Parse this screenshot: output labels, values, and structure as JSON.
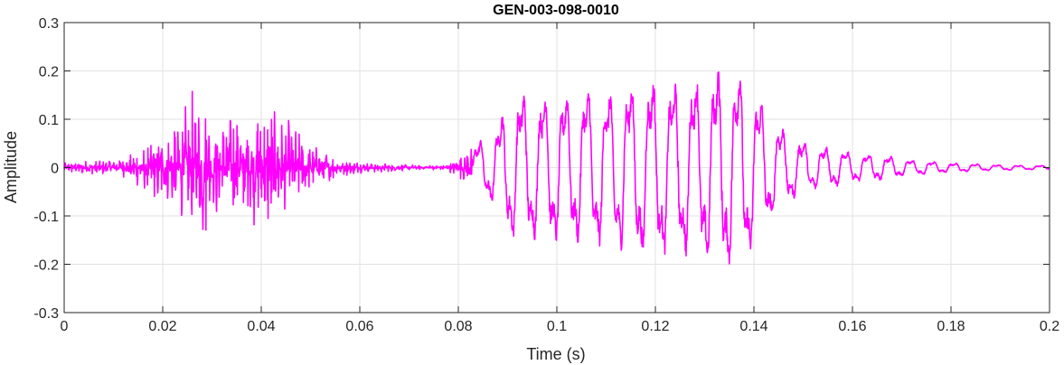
{
  "chart_data": {
    "type": "line",
    "title": "GEN-003-098-0010",
    "xlabel": "Time (s)",
    "ylabel": "Amplitude",
    "xlim": [
      0,
      0.2
    ],
    "ylim": [
      -0.3,
      0.3
    ],
    "x_ticks": [
      0,
      0.02,
      0.04,
      0.06,
      0.08,
      0.1,
      0.12,
      0.14,
      0.16,
      0.18,
      0.2
    ],
    "x_tick_labels": [
      "0",
      "0.02",
      "0.04",
      "0.06",
      "0.08",
      "0.1",
      "0.12",
      "0.14",
      "0.16",
      "0.18",
      "0.2"
    ],
    "y_ticks": [
      -0.3,
      -0.2,
      -0.1,
      0,
      0.1,
      0.2,
      0.3
    ],
    "y_tick_labels": [
      "-0.3",
      "-0.2",
      "-0.1",
      "0",
      "0.1",
      "0.2",
      "0.3"
    ],
    "grid": true,
    "line_color": "#ff00ff",
    "series": [
      {
        "x": [
          0,
          0.002,
          0.004,
          0.006,
          0.008,
          0.01,
          0.012,
          0.014,
          0.016,
          0.018,
          0.02,
          0.022,
          0.024,
          0.026,
          0.028,
          0.03,
          0.032,
          0.034,
          0.036,
          0.038,
          0.04,
          0.042,
          0.044,
          0.046,
          0.048,
          0.05,
          0.052,
          0.054,
          0.056,
          0.058,
          0.06,
          0.062,
          0.064,
          0.066,
          0.068,
          0.07,
          0.072,
          0.074,
          0.076,
          0.078,
          0.08,
          0.082,
          0.084,
          0.086,
          0.088,
          0.09,
          0.092,
          0.094,
          0.096,
          0.098,
          0.1,
          0.102,
          0.104,
          0.106,
          0.108,
          0.11,
          0.112,
          0.114,
          0.116,
          0.118,
          0.12,
          0.122,
          0.124,
          0.126,
          0.128,
          0.13,
          0.132,
          0.134,
          0.136,
          0.138,
          0.14,
          0.142,
          0.144,
          0.146,
          0.148,
          0.15,
          0.152,
          0.154,
          0.156,
          0.158,
          0.16,
          0.162,
          0.164,
          0.166,
          0.168,
          0.17,
          0.172,
          0.174,
          0.176,
          0.178,
          0.18,
          0.182,
          0.184,
          0.186,
          0.188,
          0.19,
          0.192,
          0.194,
          0.196,
          0.198,
          0.2
        ],
        "envelope": [
          0.01,
          0.012,
          0.014,
          0.015,
          0.015,
          0.016,
          0.02,
          0.03,
          0.05,
          0.06,
          0.08,
          0.1,
          0.12,
          0.16,
          0.17,
          0.11,
          0.1,
          0.12,
          0.1,
          0.13,
          0.12,
          0.14,
          0.1,
          0.1,
          0.07,
          0.05,
          0.04,
          0.03,
          0.02,
          0.015,
          0.012,
          0.01,
          0.01,
          0.008,
          0.007,
          0.006,
          0.005,
          0.005,
          0.005,
          0.008,
          0.02,
          0.04,
          0.06,
          0.07,
          0.1,
          0.15,
          0.17,
          0.17,
          0.16,
          0.17,
          0.17,
          0.17,
          0.17,
          0.18,
          0.18,
          0.17,
          0.18,
          0.19,
          0.2,
          0.2,
          0.2,
          0.2,
          0.19,
          0.2,
          0.2,
          0.21,
          0.22,
          0.23,
          0.22,
          0.23,
          0.18,
          0.14,
          0.11,
          0.09,
          0.07,
          0.06,
          0.05,
          0.05,
          0.045,
          0.04,
          0.035,
          0.03,
          0.03,
          0.028,
          0.025,
          0.02,
          0.018,
          0.016,
          0.014,
          0.012,
          0.01,
          0.01,
          0.009,
          0.008,
          0.007,
          0.006,
          0.006,
          0.005,
          0.005,
          0.005,
          0.004
        ],
        "voiced_start": 0.083,
        "pitch_hz": 228
      }
    ]
  }
}
